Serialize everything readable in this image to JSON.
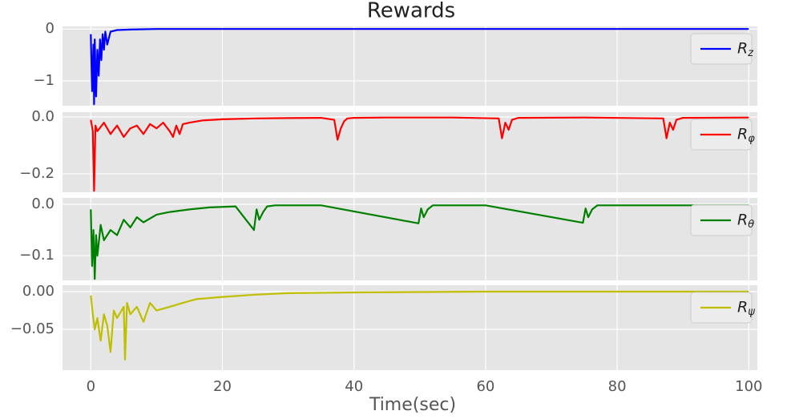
{
  "chart_data": [
    {
      "type": "line",
      "title": "Rewards",
      "xlim": [
        -4.3,
        101.3
      ],
      "ylim": [
        -1.48,
        0.05
      ],
      "yticks": [
        {
          "value": -1,
          "label": "−1"
        },
        0
      ],
      "grid": true,
      "legend": "upper right",
      "x": [
        0,
        0.2,
        0.4,
        0.5,
        0.6,
        0.8,
        1.0,
        1.2,
        1.4,
        1.6,
        1.8,
        2.0,
        2.2,
        2.5,
        3,
        4,
        6,
        10,
        20,
        40,
        60,
        80,
        100
      ],
      "series": [
        {
          "name": "R_z",
          "color": "#0000ff",
          "values": [
            -0.1,
            -1.2,
            -0.3,
            -1.45,
            -0.2,
            -1.3,
            -0.4,
            -0.9,
            -0.2,
            -0.6,
            -0.1,
            -0.4,
            -0.05,
            -0.3,
            -0.05,
            -0.02,
            -0.01,
            0,
            0,
            0,
            0,
            0,
            0
          ]
        }
      ]
    },
    {
      "type": "line",
      "xlim": [
        -4.3,
        101.3
      ],
      "ylim": [
        -0.265,
        0.017
      ],
      "yticks": [
        {
          "value": -0.2,
          "label": "−0.2"
        },
        {
          "value": 0,
          "label": "0.0"
        }
      ],
      "grid": true,
      "legend": "upper right",
      "x": [
        0,
        0.3,
        0.5,
        0.7,
        1,
        2,
        3,
        4,
        5,
        6,
        7,
        8,
        9,
        10,
        11,
        12,
        12.5,
        13,
        13.5,
        14,
        15,
        17,
        20,
        25,
        30,
        35,
        37,
        37.5,
        38,
        38.5,
        39,
        40,
        45,
        55,
        62,
        62.5,
        63,
        63.5,
        64,
        65,
        75,
        87,
        87.5,
        88,
        88.5,
        89,
        90,
        100
      ],
      "series": [
        {
          "name": "R_φ",
          "color": "#ff0000",
          "values": [
            -0.01,
            -0.05,
            -0.26,
            -0.03,
            -0.05,
            -0.02,
            -0.06,
            -0.03,
            -0.07,
            -0.04,
            -0.03,
            -0.06,
            -0.025,
            -0.04,
            -0.02,
            -0.05,
            -0.07,
            -0.03,
            -0.06,
            -0.025,
            -0.02,
            -0.012,
            -0.008,
            -0.005,
            -0.004,
            -0.003,
            -0.01,
            -0.08,
            -0.04,
            -0.015,
            -0.005,
            -0.003,
            -0.002,
            -0.002,
            -0.005,
            -0.075,
            -0.02,
            -0.045,
            -0.01,
            -0.003,
            -0.002,
            -0.005,
            -0.075,
            -0.02,
            -0.045,
            -0.01,
            -0.003,
            -0.002
          ]
        }
      ]
    },
    {
      "type": "line",
      "xlim": [
        -4.3,
        101.3
      ],
      "ylim": [
        -0.148,
        0.0125
      ],
      "yticks": [
        {
          "value": -0.1,
          "label": "−0.1"
        },
        {
          "value": 0,
          "label": "0.0"
        }
      ],
      "grid": true,
      "legend": "upper right",
      "x": [
        0,
        0.2,
        0.4,
        0.6,
        0.8,
        1,
        1.5,
        2,
        3,
        4,
        5,
        6,
        7,
        8,
        10,
        12,
        15,
        18,
        22,
        24.8,
        25.2,
        25.6,
        26.2,
        26.8,
        28,
        35,
        49.8,
        50.2,
        50.6,
        51.2,
        52,
        60,
        74.8,
        75.2,
        75.6,
        76.2,
        77,
        85,
        100
      ],
      "series": [
        {
          "name": "R_θ",
          "color": "#008000",
          "values": [
            -0.01,
            -0.12,
            -0.05,
            -0.145,
            -0.06,
            -0.1,
            -0.04,
            -0.07,
            -0.05,
            -0.06,
            -0.03,
            -0.045,
            -0.025,
            -0.035,
            -0.02,
            -0.015,
            -0.01,
            -0.006,
            -0.004,
            -0.05,
            -0.01,
            -0.03,
            -0.015,
            -0.004,
            -0.002,
            -0.002,
            -0.037,
            -0.008,
            -0.025,
            -0.01,
            -0.002,
            -0.002,
            -0.036,
            -0.008,
            -0.025,
            -0.01,
            -0.002,
            -0.002,
            -0.002
          ]
        }
      ]
    },
    {
      "type": "line",
      "x_label": "Time(sec)",
      "xlim": [
        -4.3,
        101.3
      ],
      "ylim": [
        -0.104,
        0.0085
      ],
      "xticks": [
        0,
        20,
        40,
        60,
        80,
        100
      ],
      "yticks": [
        {
          "value": -0.05,
          "label": "−0.05"
        },
        {
          "value": 0,
          "label": "0.00"
        }
      ],
      "grid": true,
      "legend": "upper right",
      "x": [
        0,
        0.3,
        0.6,
        1,
        1.5,
        2,
        2.5,
        3,
        3.5,
        4,
        5,
        5.2,
        5.5,
        6,
        7,
        8,
        9,
        10,
        12,
        14,
        16,
        20,
        25,
        30,
        40,
        60,
        80,
        100
      ],
      "series": [
        {
          "name": "R_ψ",
          "color": "#bfbf00",
          "values": [
            -0.005,
            -0.03,
            -0.05,
            -0.035,
            -0.065,
            -0.03,
            -0.045,
            -0.08,
            -0.025,
            -0.035,
            -0.02,
            -0.09,
            -0.015,
            -0.03,
            -0.02,
            -0.04,
            -0.015,
            -0.025,
            -0.02,
            -0.015,
            -0.01,
            -0.007,
            -0.004,
            -0.002,
            -0.001,
            0,
            0,
            0
          ]
        }
      ]
    }
  ]
}
